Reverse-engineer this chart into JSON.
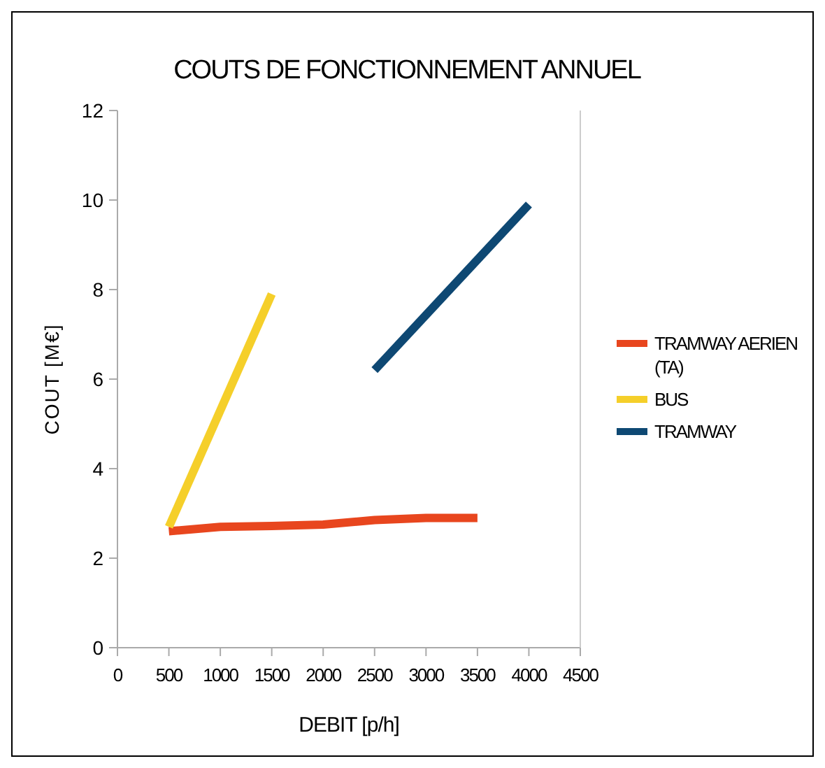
{
  "chart_data": {
    "type": "line",
    "title": "COUTS DE FONCTIONNEMENT ANNUEL",
    "xlabel": "DEBIT [p/h]",
    "ylabel": "COUT [M€]",
    "xlim": [
      0,
      4500
    ],
    "xticks": [
      0,
      500,
      1000,
      1500,
      2000,
      2500,
      3000,
      3500,
      4000,
      4500
    ],
    "ylim": [
      0,
      12
    ],
    "yticks": [
      0,
      2,
      4,
      6,
      8,
      10,
      12
    ],
    "grid": false,
    "legend": "right",
    "marker": "none",
    "line_style": "solid",
    "series": [
      {
        "name": "TRAMWAY AERIEN (TA)",
        "color": "#e8461e",
        "x": [
          500,
          1000,
          1500,
          2000,
          2500,
          3000,
          3500
        ],
        "values": [
          2.6,
          2.7,
          2.72,
          2.75,
          2.85,
          2.9,
          2.9
        ]
      },
      {
        "name": "BUS",
        "color": "#f5cf2a",
        "x": [
          500,
          1500
        ],
        "values": [
          2.7,
          7.9
        ]
      },
      {
        "name": "TRAMWAY",
        "color": "#0e4873",
        "x": [
          2500,
          4000
        ],
        "values": [
          6.2,
          9.9
        ]
      }
    ]
  }
}
